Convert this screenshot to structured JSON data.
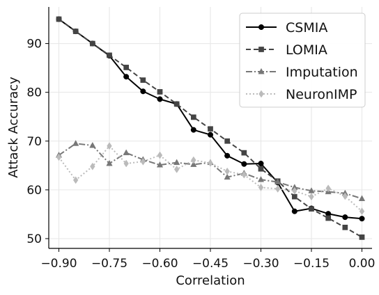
{
  "chart_data": {
    "type": "line",
    "xlabel": "Correlation",
    "ylabel": "Attack Accuracy",
    "xlim": [
      -0.93,
      0.03
    ],
    "ylim": [
      48,
      97.5
    ],
    "x_ticks": [
      -0.9,
      -0.75,
      -0.6,
      -0.45,
      -0.3,
      -0.15,
      0.0
    ],
    "x_tick_labels": [
      "−0.90",
      "−0.75",
      "−0.60",
      "−0.45",
      "−0.30",
      "−0.15",
      "0.00"
    ],
    "y_ticks": [
      50,
      60,
      70,
      80,
      90
    ],
    "y_tick_labels": [
      "50",
      "60",
      "70",
      "80",
      "90"
    ],
    "grid": true,
    "legend_position": "top-right",
    "x": [
      -0.9,
      -0.85,
      -0.8,
      -0.75,
      -0.7,
      -0.65,
      -0.6,
      -0.55,
      -0.5,
      -0.45,
      -0.4,
      -0.35,
      -0.3,
      -0.25,
      -0.2,
      -0.15,
      -0.1,
      -0.05,
      0.0
    ],
    "series": [
      {
        "name": "CSMIA",
        "color": "#000000",
        "marker": "circle",
        "dash": "solid",
        "values": [
          95.0,
          92.5,
          90.0,
          87.5,
          83.2,
          80.2,
          78.6,
          77.6,
          72.3,
          71.3,
          67.0,
          65.3,
          65.4,
          61.5,
          55.6,
          56.2,
          55.1,
          54.4,
          54.1
        ]
      },
      {
        "name": "LOMIA",
        "color": "#444444",
        "marker": "square",
        "dash": "dashed",
        "values": [
          95.0,
          92.5,
          90.0,
          87.6,
          85.1,
          82.5,
          80.1,
          77.6,
          74.9,
          72.5,
          70.0,
          67.6,
          64.3,
          61.8,
          58.6,
          56.1,
          54.2,
          52.3,
          50.3
        ]
      },
      {
        "name": "Imputation",
        "color": "#777777",
        "marker": "triangle",
        "dash": "dashdot",
        "values": [
          67.1,
          69.5,
          69.1,
          65.4,
          67.6,
          66.2,
          65.1,
          65.6,
          65.2,
          65.6,
          62.6,
          63.4,
          62.1,
          61.6,
          60.5,
          59.8,
          59.6,
          59.3,
          58.2
        ]
      },
      {
        "name": "NeuronIMP",
        "color": "#bbbbbb",
        "marker": "diamond",
        "dash": "dotted",
        "values": [
          66.7,
          62.0,
          64.8,
          69.0,
          65.4,
          65.8,
          67.1,
          64.2,
          66.1,
          65.5,
          63.8,
          63.1,
          60.5,
          60.2,
          59.8,
          58.6,
          60.3,
          58.7,
          55.6
        ]
      }
    ]
  }
}
